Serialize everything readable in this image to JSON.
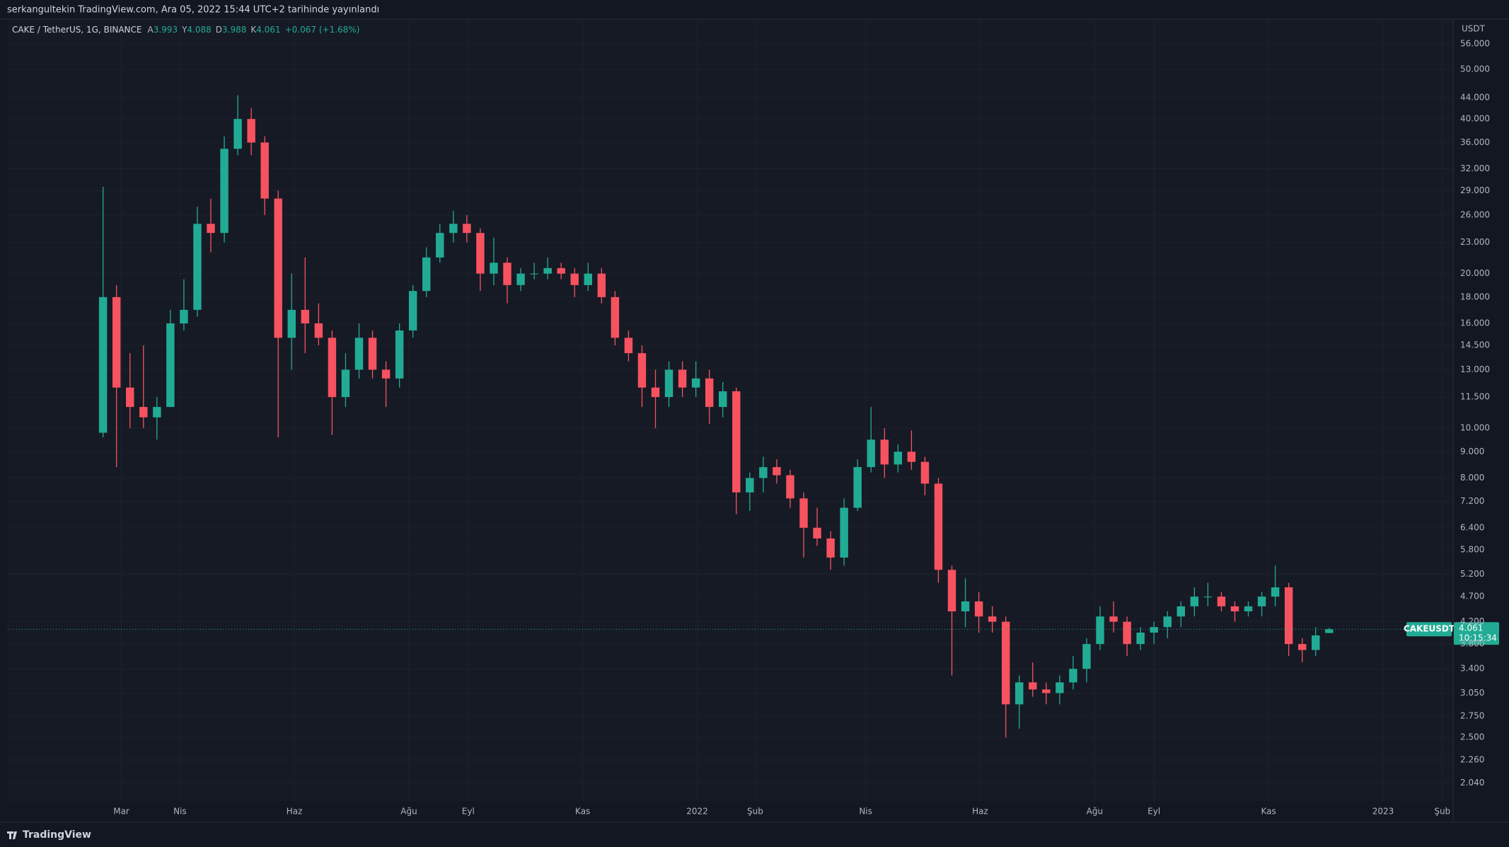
{
  "chart_data": {
    "type": "candlestick",
    "title": "serkangultekin TradingView.com, Ara 05, 2022 15:44 UTC+2 tarihinde yayınlandı",
    "subtitle": "CAKE / TetherUS, 1G, BINANCE",
    "legend_values": [
      {
        "key": "A",
        "value": 3.993
      },
      {
        "key": "Y",
        "value": 4.088
      },
      {
        "key": "D",
        "value": 3.988
      },
      {
        "key": "K",
        "value": 4.061
      }
    ],
    "change": "+0.067 (+1.68%)",
    "y_unit": "USDT",
    "brand": "TradingView",
    "up_color": "#22ab94",
    "down_color": "#f7525f",
    "log_scale": true,
    "grid": true,
    "open": [
      9.8,
      18,
      12,
      11,
      10.5,
      11,
      16,
      17,
      25,
      24,
      35,
      40,
      36,
      28,
      15,
      17,
      16,
      15,
      11.5,
      13,
      15,
      13,
      12.5,
      15.5,
      18.5,
      21.5,
      24,
      25,
      24,
      20,
      21,
      19,
      20,
      20,
      20.5,
      20,
      19,
      20,
      18,
      15,
      14,
      12,
      11.5,
      13,
      12,
      12.5,
      11,
      11.8,
      7.5,
      8,
      8.4,
      8.1,
      7.3,
      6.4,
      6.1,
      5.6,
      7,
      8.4,
      9.5,
      8.5,
      9,
      8.6,
      7.8,
      5.3,
      4.4,
      4.6,
      4.3,
      4.2,
      2.9,
      3.2,
      3.1,
      3.05,
      3.2,
      3.4,
      3.8,
      4.3,
      4.2,
      3.8,
      4,
      4.1,
      4.3,
      4.5,
      4.7,
      4.7,
      4.5,
      4.4,
      4.5,
      4.7,
      4.9,
      3.8,
      3.7,
      3.993
    ],
    "high": [
      29.5,
      19,
      14,
      14.5,
      11.5,
      17,
      19.5,
      27,
      28,
      37,
      44.5,
      42,
      37,
      29,
      20,
      21.5,
      17.5,
      15.5,
      14,
      16,
      15.5,
      13.5,
      16,
      19,
      22.5,
      25,
      26.5,
      26,
      24.5,
      23.5,
      21.5,
      20.5,
      21,
      21.5,
      21,
      20.5,
      21,
      20.5,
      18.5,
      15.5,
      14.5,
      13,
      13.5,
      13.5,
      13.5,
      13,
      12.3,
      12,
      8.2,
      8.8,
      8.7,
      8.3,
      7.5,
      7,
      6.3,
      7.3,
      8.7,
      11,
      10,
      9.3,
      9.9,
      8.8,
      8,
      5.4,
      5.1,
      4.8,
      4.5,
      4.3,
      3.3,
      3.5,
      3.2,
      3.3,
      3.6,
      3.9,
      4.5,
      4.6,
      4.3,
      4.1,
      4.2,
      4.4,
      4.6,
      4.9,
      5,
      4.8,
      4.6,
      4.6,
      4.8,
      5.4,
      5,
      3.9,
      4.1,
      4.088
    ],
    "low": [
      9.6,
      8.4,
      10,
      10,
      9.5,
      11,
      15.5,
      16.5,
      22,
      23,
      34,
      34,
      26,
      9.6,
      13,
      14,
      14.5,
      9.7,
      11,
      12.5,
      12.5,
      11,
      12,
      15,
      18,
      21,
      23,
      23,
      18.5,
      19,
      17.5,
      18.5,
      19.5,
      19.5,
      19.5,
      18,
      18.5,
      17.5,
      14.5,
      13.5,
      11,
      10,
      11,
      11.5,
      11.5,
      10.2,
      10.5,
      6.8,
      6.9,
      7.5,
      7.8,
      7,
      5.6,
      5.9,
      5.3,
      5.4,
      6.9,
      8.2,
      8,
      8.2,
      8.3,
      7.4,
      5,
      3.3,
      4.1,
      4,
      4,
      2.5,
      2.6,
      3,
      2.9,
      2.9,
      3.1,
      3.2,
      3.7,
      4,
      3.6,
      3.7,
      3.8,
      3.9,
      4.1,
      4.3,
      4.5,
      4.4,
      4.2,
      4.3,
      4.3,
      4.5,
      3.6,
      3.5,
      3.6,
      3.988
    ],
    "close": [
      18,
      12,
      11,
      10.5,
      11,
      16,
      17,
      25,
      24,
      35,
      40,
      36,
      28,
      15,
      17,
      16,
      15,
      11.5,
      13,
      15,
      13,
      12.5,
      15.5,
      18.5,
      21.5,
      24,
      25,
      24,
      20,
      21,
      19,
      20,
      20,
      20.5,
      20,
      19,
      20,
      18,
      15,
      14,
      12,
      11.5,
      13,
      12,
      12.5,
      11,
      11.8,
      7.5,
      8,
      8.4,
      8.1,
      7.3,
      6.4,
      6.1,
      5.6,
      7,
      8.4,
      9.5,
      8.5,
      9,
      8.6,
      7.8,
      5.3,
      4.4,
      4.6,
      4.3,
      4.2,
      2.9,
      3.2,
      3.1,
      3.05,
      3.2,
      3.4,
      3.8,
      4.3,
      4.2,
      3.8,
      4,
      4.1,
      4.3,
      4.5,
      4.7,
      4.7,
      4.5,
      4.4,
      4.5,
      4.7,
      4.9,
      3.8,
      3.7,
      3.95,
      4.061
    ],
    "xlim": [
      -7.07,
      100.2
    ],
    "xticks": [
      {
        "value": 1.36,
        "label": "Mar"
      },
      {
        "value": 5.71,
        "label": "Nis"
      },
      {
        "value": 14.2,
        "label": "Haz"
      },
      {
        "value": 22.7,
        "label": "Ağu"
      },
      {
        "value": 27.1,
        "label": "Eyl"
      },
      {
        "value": 35.6,
        "label": "Kas"
      },
      {
        "value": 44.1,
        "label": "2022"
      },
      {
        "value": 48.4,
        "label": "Şub"
      },
      {
        "value": 56.6,
        "label": "Nis"
      },
      {
        "value": 65.1,
        "label": "Haz"
      },
      {
        "value": 73.6,
        "label": "Ağu"
      },
      {
        "value": 78.0,
        "label": "Eyl"
      },
      {
        "value": 86.5,
        "label": "Kas"
      },
      {
        "value": 95.0,
        "label": "2023"
      },
      {
        "value": 99.4,
        "label": "Şub"
      }
    ],
    "ylim": [
      1.88,
      62.6
    ],
    "yticks": [
      {
        "value": 56,
        "label": "56.000"
      },
      {
        "value": 50,
        "label": "50.000"
      },
      {
        "value": 44,
        "label": "44.000"
      },
      {
        "value": 40,
        "label": "40.000"
      },
      {
        "value": 36,
        "label": "36.000"
      },
      {
        "value": 32,
        "label": "32.000"
      },
      {
        "value": 29,
        "label": "29.000"
      },
      {
        "value": 26,
        "label": "26.000"
      },
      {
        "value": 23,
        "label": "23.000"
      },
      {
        "value": 20,
        "label": "20.000"
      },
      {
        "value": 18,
        "label": "18.000"
      },
      {
        "value": 16,
        "label": "16.000"
      },
      {
        "value": 14.5,
        "label": "14.500"
      },
      {
        "value": 13,
        "label": "13.000"
      },
      {
        "value": 11.5,
        "label": "11.500"
      },
      {
        "value": 10,
        "label": "10.000"
      },
      {
        "value": 9,
        "label": "9.000"
      },
      {
        "value": 8,
        "label": "8.000"
      },
      {
        "value": 7.2,
        "label": "7.200"
      },
      {
        "value": 6.4,
        "label": "6.400"
      },
      {
        "value": 5.8,
        "label": "5.800"
      },
      {
        "value": 5.2,
        "label": "5.200"
      },
      {
        "value": 4.7,
        "label": "4.700"
      },
      {
        "value": 4.2,
        "label": "4.200"
      },
      {
        "value": 3.8,
        "label": "3.800"
      },
      {
        "value": 3.4,
        "label": "3.400"
      },
      {
        "value": 3.05,
        "label": "3.050"
      },
      {
        "value": 2.75,
        "label": "2.750"
      },
      {
        "value": 2.5,
        "label": "2.500"
      },
      {
        "value": 2.26,
        "label": "2.260"
      },
      {
        "value": 2.04,
        "label": "2.040"
      }
    ],
    "last_price": {
      "symbol": "CAKEUSDT",
      "value": 4.061,
      "countdown": "10:15:34"
    }
  }
}
